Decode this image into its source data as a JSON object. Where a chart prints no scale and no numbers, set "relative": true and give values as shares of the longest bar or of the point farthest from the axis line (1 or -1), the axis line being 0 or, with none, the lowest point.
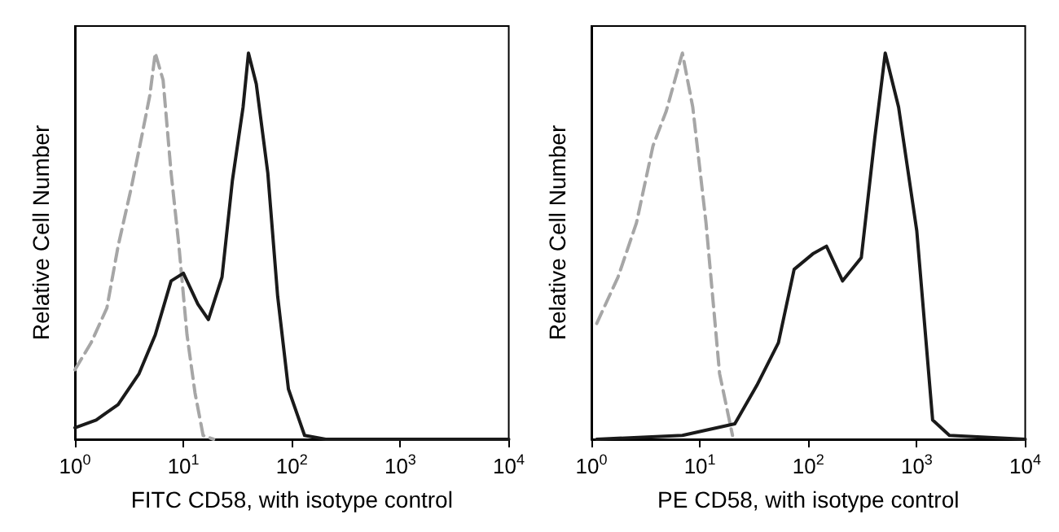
{
  "chart_data": [
    {
      "type": "line",
      "xlabel": "FITC CD58, with isotype control",
      "ylabel": "Relative Cell Number",
      "relative": true,
      "log": "x",
      "xlim": [
        1,
        10000
      ],
      "xticks": [
        {
          "value": 1,
          "label": "10$^{0}$"
        },
        {
          "value": 10,
          "label": "10$^{1}$"
        },
        {
          "value": 100,
          "label": "10$^{2}$"
        },
        {
          "value": 1000,
          "label": "10$^{3}$"
        },
        {
          "value": 10000,
          "label": "10$^{4}$"
        }
      ],
      "series": [
        {
          "color": "#a6a6a6",
          "line_style": "dashed",
          "x": [
            1,
            1.41,
            1.97,
            2.5,
            3.3,
            4.1,
            4.9,
            5.5,
            6.5,
            7.7,
            9.1,
            10.8,
            12.8,
            15.2,
            19
          ],
          "values": [
            0.18,
            0.25,
            0.34,
            0.5,
            0.65,
            0.78,
            0.89,
            1.0,
            0.93,
            0.69,
            0.5,
            0.27,
            0.12,
            0.01,
            0
          ]
        },
        {
          "color": "#1a1a1a",
          "line_style": "solid",
          "x": [
            1,
            1.57,
            2.5,
            3.9,
            5.5,
            7.7,
            10,
            13.6,
            17,
            22.7,
            28.3,
            35.5,
            39.8,
            47,
            60,
            74,
            93,
            131,
            205,
            10000
          ],
          "values": [
            0.03,
            0.05,
            0.09,
            0.17,
            0.27,
            0.41,
            0.43,
            0.35,
            0.31,
            0.42,
            0.67,
            0.86,
            1.0,
            0.92,
            0.69,
            0.37,
            0.13,
            0.01,
            0,
            0
          ]
        }
      ]
    },
    {
      "type": "line",
      "xlabel": "PE CD58, with isotype control",
      "ylabel": "Relative Cell Number",
      "relative": true,
      "log": "x",
      "xlim": [
        1,
        10000
      ],
      "xticks": [
        {
          "value": 1,
          "label": "10$^{0}$"
        },
        {
          "value": 10,
          "label": "10$^{1}$"
        },
        {
          "value": 100,
          "label": "10$^{2}$"
        },
        {
          "value": 1000,
          "label": "10$^{3}$"
        },
        {
          "value": 10000,
          "label": "10$^{4}$"
        }
      ],
      "series": [
        {
          "color": "#a6a6a6",
          "line_style": "dashed",
          "x": [
            1.12,
            1.76,
            2.6,
            3.7,
            4.9,
            6.9,
            8.6,
            11.4,
            15.2,
            20
          ],
          "values": [
            0.3,
            0.42,
            0.56,
            0.76,
            0.85,
            1.0,
            0.86,
            0.56,
            0.17,
            0.01
          ]
        },
        {
          "color": "#1a1a1a",
          "line_style": "solid",
          "x": [
            1.12,
            6.9,
            21,
            33.6,
            53,
            74,
            110,
            147,
            207,
            308,
            410,
            512,
            680,
            1000,
            1400,
            2000,
            10000
          ],
          "values": [
            0,
            0.01,
            0.04,
            0.14,
            0.25,
            0.44,
            0.48,
            0.5,
            0.41,
            0.47,
            0.78,
            1.0,
            0.86,
            0.54,
            0.05,
            0.01,
            0
          ]
        }
      ]
    }
  ]
}
